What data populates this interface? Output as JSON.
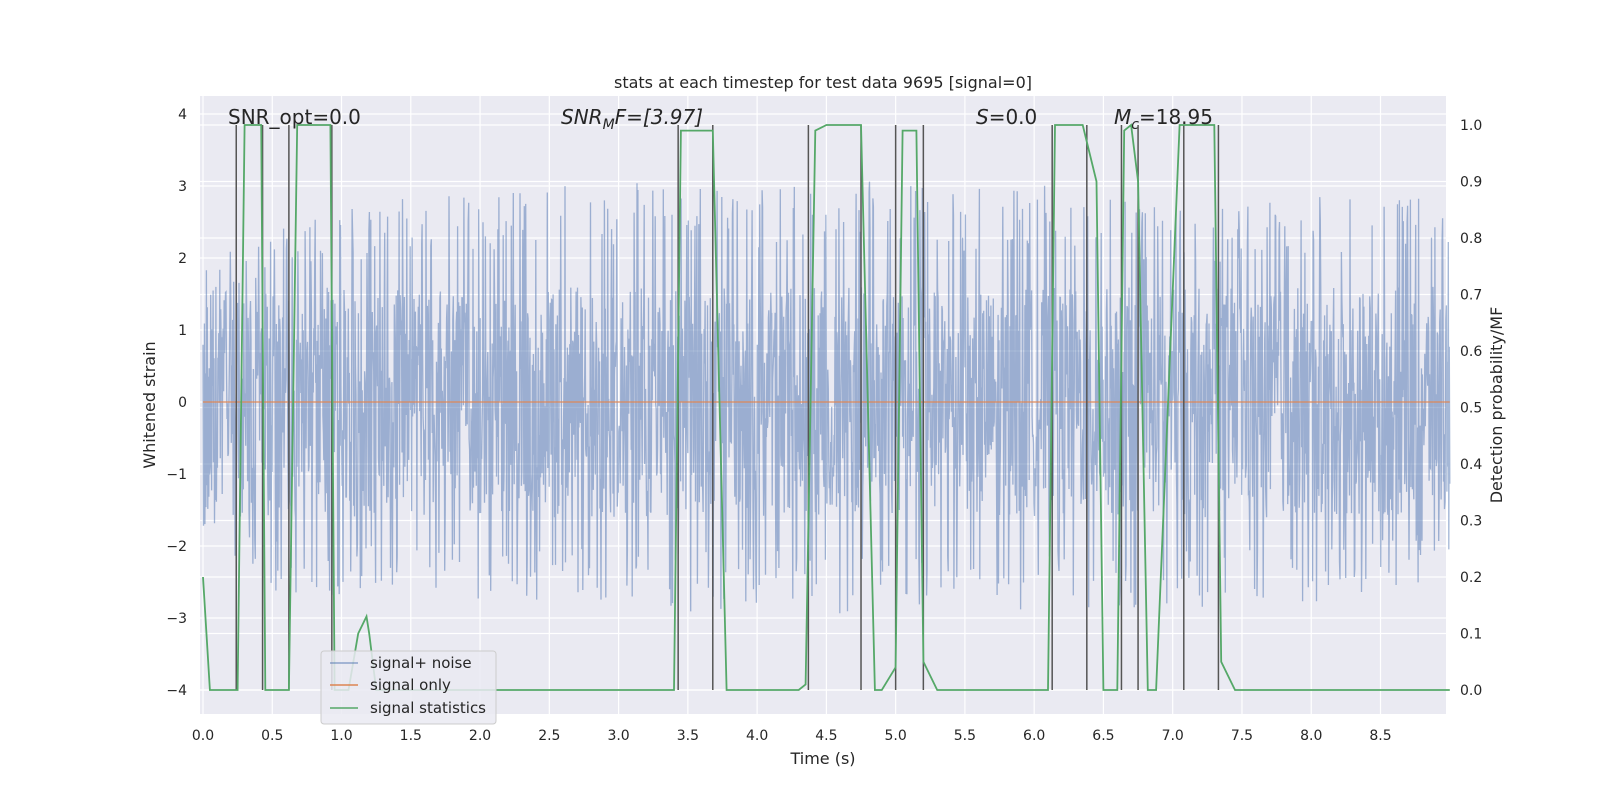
{
  "chart_data": {
    "type": "line",
    "title": "stats at each timestep for test data 9695 [signal=0]",
    "xlabel": "Time (s)",
    "ylabel": "Whitened strain",
    "y2label": "Detection probability/MF",
    "xlim": [
      0.0,
      9.0
    ],
    "ylim": [
      -4.4,
      4.2
    ],
    "y2lim": [
      -0.05,
      1.035
    ],
    "x_ticks": [
      "0.0",
      "0.5",
      "1.0",
      "1.5",
      "2.0",
      "2.5",
      "3.0",
      "3.5",
      "4.0",
      "4.5",
      "5.0",
      "5.5",
      "6.0",
      "6.5",
      "7.0",
      "7.5",
      "8.0",
      "8.5"
    ],
    "y_ticks": [
      "4",
      "3",
      "2",
      "1",
      "0",
      "−1",
      "−2",
      "−3",
      "−4"
    ],
    "y2_ticks": [
      "1.0",
      "0.9",
      "0.8",
      "0.7",
      "0.6",
      "0.5",
      "0.4",
      "0.3",
      "0.2",
      "0.1",
      "0.0"
    ],
    "grid": true,
    "legend_position": "lower-left",
    "colors": {
      "noise": "#4c72b0",
      "signal": "#dd8452",
      "stats": "#55a868",
      "vlines": "#555555",
      "background": "#eaeaf2"
    },
    "annotations": {
      "snr_opt": "SNR_opt=0.0",
      "snr_mf_base": "SNR",
      "snr_mf_sub": "M",
      "snr_mf_rest": "F=[3.97]",
      "s_base": "S",
      "s_rest": "=0.0",
      "mc_base": "M",
      "mc_sub": "c",
      "mc_rest": "=18.95"
    },
    "series": [
      {
        "name": "signal+ noise",
        "envelope_upper": [
          [
            0.0,
            1.8
          ],
          [
            0.5,
            2.4
          ],
          [
            1.0,
            2.6
          ],
          [
            1.5,
            2.7
          ],
          [
            2.0,
            2.8
          ],
          [
            2.5,
            2.9
          ],
          [
            3.0,
            2.9
          ],
          [
            3.5,
            2.9
          ],
          [
            4.0,
            2.8
          ],
          [
            4.5,
            2.9
          ],
          [
            5.0,
            3.0
          ],
          [
            5.5,
            2.8
          ],
          [
            6.0,
            2.9
          ],
          [
            6.5,
            2.7
          ],
          [
            7.0,
            2.6
          ],
          [
            7.5,
            2.6
          ],
          [
            8.0,
            2.7
          ],
          [
            8.5,
            2.8
          ],
          [
            9.0,
            2.6
          ]
        ],
        "envelope_lower": [
          [
            0.0,
            -1.8
          ],
          [
            0.5,
            -2.5
          ],
          [
            1.0,
            -2.6
          ],
          [
            1.5,
            -2.6
          ],
          [
            2.0,
            -2.6
          ],
          [
            2.5,
            -2.7
          ],
          [
            3.0,
            -2.6
          ],
          [
            3.5,
            -2.8
          ],
          [
            4.0,
            -2.7
          ],
          [
            4.5,
            -2.9
          ],
          [
            5.0,
            -2.9
          ],
          [
            5.5,
            -2.7
          ],
          [
            6.0,
            -2.8
          ],
          [
            6.5,
            -2.7
          ],
          [
            7.0,
            -2.8
          ],
          [
            7.5,
            -2.6
          ],
          [
            8.0,
            -2.7
          ],
          [
            8.5,
            -2.5
          ],
          [
            9.0,
            -2.4
          ]
        ]
      },
      {
        "name": "signal only",
        "x": [
          0.0,
          9.0
        ],
        "y": [
          0.0,
          0.0
        ]
      },
      {
        "name": "signal statistics",
        "x": [
          0.0,
          0.05,
          0.25,
          0.3,
          0.42,
          0.45,
          0.62,
          0.68,
          0.92,
          0.95,
          1.05,
          1.12,
          1.18,
          1.2,
          1.25,
          3.4,
          3.45,
          3.68,
          3.78,
          4.3,
          4.35,
          4.42,
          4.5,
          4.75,
          4.85,
          4.9,
          5.0,
          5.05,
          5.15,
          5.2,
          5.3,
          6.1,
          6.15,
          6.35,
          6.45,
          6.5,
          6.6,
          6.65,
          6.7,
          6.75,
          6.82,
          6.88,
          7.05,
          7.12,
          7.3,
          7.35,
          7.45,
          9.0
        ],
        "y": [
          0.2,
          0.0,
          0.0,
          1.0,
          1.0,
          0.0,
          0.0,
          1.0,
          1.0,
          0.0,
          0.0,
          0.1,
          0.13,
          0.1,
          0.0,
          0.0,
          0.99,
          0.99,
          0.0,
          0.0,
          0.01,
          0.99,
          1.0,
          1.0,
          0.0,
          0.0,
          0.04,
          0.99,
          0.99,
          0.05,
          0.0,
          0.0,
          1.0,
          1.0,
          0.9,
          0.0,
          0.0,
          0.99,
          1.0,
          0.9,
          0.0,
          0.0,
          1.0,
          1.0,
          1.0,
          0.05,
          0.0,
          0.0
        ]
      }
    ],
    "vertical_markers_x": [
      0.24,
      0.43,
      0.62,
      0.93,
      3.43,
      3.68,
      4.37,
      4.75,
      5.0,
      5.2,
      6.13,
      6.38,
      6.63,
      6.75,
      7.08,
      7.33
    ]
  }
}
